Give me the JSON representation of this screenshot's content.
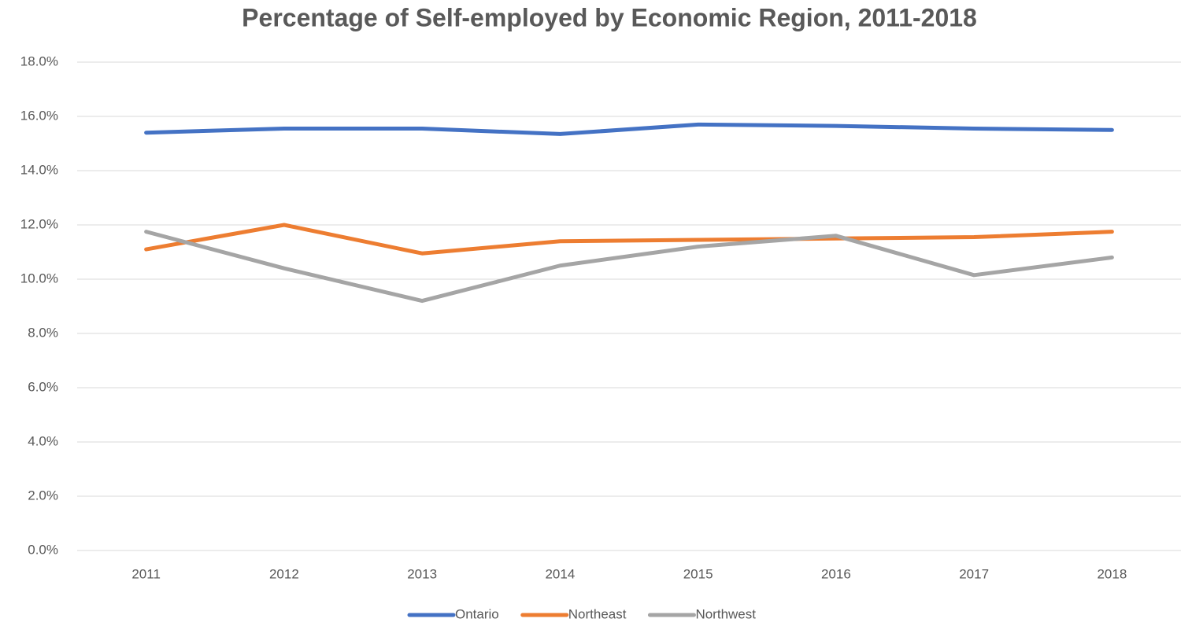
{
  "chart_data": {
    "type": "line",
    "title": "Percentage of Self-employed by Economic Region, 2011-2018",
    "categories": [
      "2011",
      "2012",
      "2013",
      "2014",
      "2015",
      "2016",
      "2017",
      "2018"
    ],
    "series": [
      {
        "name": "Ontario",
        "color": "#4472c4",
        "values": [
          15.4,
          15.55,
          15.55,
          15.35,
          15.7,
          15.65,
          15.55,
          15.5
        ]
      },
      {
        "name": "Northeast",
        "color": "#ed7d31",
        "values": [
          11.1,
          12.0,
          10.95,
          11.4,
          11.45,
          11.5,
          11.55,
          11.75
        ]
      },
      {
        "name": "Northwest",
        "color": "#a5a5a5",
        "values": [
          11.75,
          10.4,
          9.2,
          10.5,
          11.2,
          11.6,
          10.15,
          10.8
        ]
      }
    ],
    "ylim": [
      0,
      18
    ],
    "yticks": [
      {
        "value": 0,
        "label": "0.0%"
      },
      {
        "value": 2,
        "label": "2.0%"
      },
      {
        "value": 4,
        "label": "4.0%"
      },
      {
        "value": 6,
        "label": "6.0%"
      },
      {
        "value": 8,
        "label": "8.0%"
      },
      {
        "value": 10,
        "label": "10.0%"
      },
      {
        "value": 12,
        "label": "12.0%"
      },
      {
        "value": 14,
        "label": "14.0%"
      },
      {
        "value": 16,
        "label": "16.0%"
      },
      {
        "value": 18,
        "label": "18.0%"
      }
    ],
    "grid": true,
    "legend": "bottom"
  }
}
